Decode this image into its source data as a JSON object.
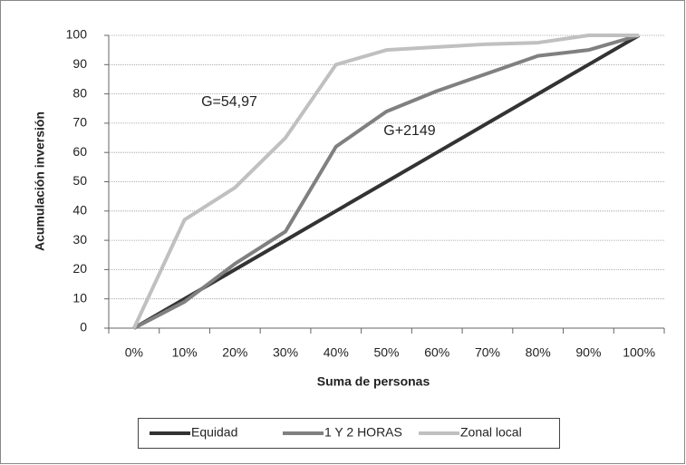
{
  "chart_data": {
    "type": "line",
    "x_label": "Suma de personas",
    "y_label": "Acumulación inversión",
    "categories": [
      "0%",
      "10%",
      "20%",
      "30%",
      "40%",
      "50%",
      "60%",
      "70%",
      "80%",
      "90%",
      "100%"
    ],
    "series": [
      {
        "name": "Equidad",
        "color": "#333333",
        "values": [
          0,
          10,
          20,
          30,
          40,
          50,
          60,
          70,
          80,
          90,
          100
        ]
      },
      {
        "name": "1 Y 2 HORAS",
        "color": "#808080",
        "values": [
          0,
          9,
          22,
          33,
          62,
          74,
          81,
          87,
          93,
          95,
          100
        ]
      },
      {
        "name": "Zonal local",
        "color": "#c0c0c0",
        "values": [
          0,
          37,
          48,
          65,
          90,
          95,
          96,
          97,
          97.5,
          100,
          100
        ]
      }
    ],
    "annotations": [
      "G=54,97",
      "G+2149"
    ],
    "ylim": [
      0,
      100
    ],
    "yticks": [
      0,
      10,
      20,
      30,
      40,
      50,
      60,
      70,
      80,
      90,
      100
    ],
    "grid": true,
    "legend": "bottom"
  }
}
